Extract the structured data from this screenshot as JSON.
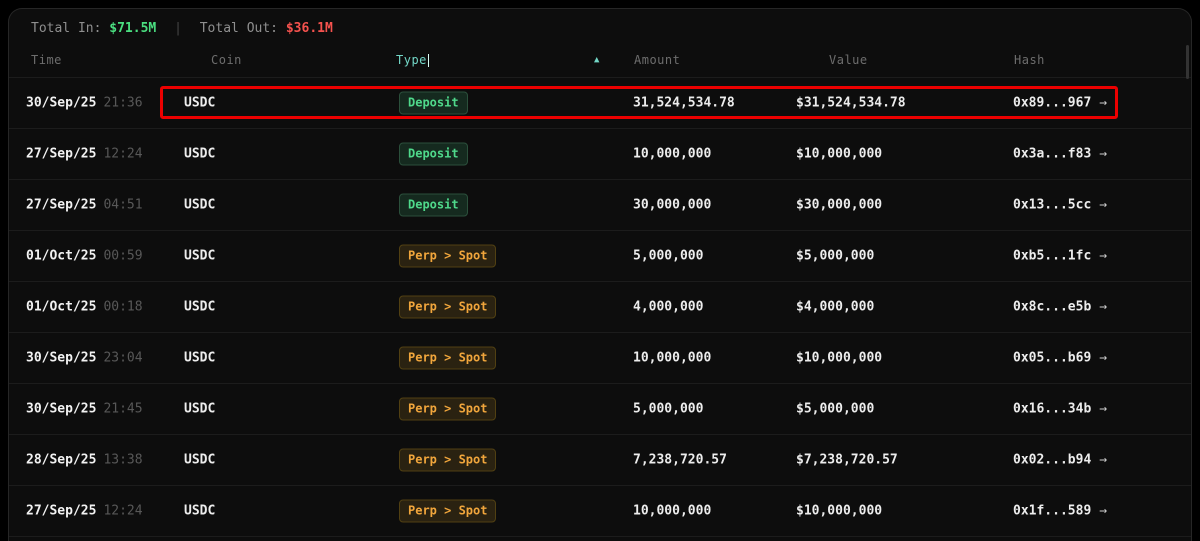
{
  "summary": {
    "total_in_label": "Total In:",
    "total_in_value": "$71.5M",
    "divider": "|",
    "total_out_label": "Total Out:",
    "total_out_value": "$36.1M"
  },
  "table": {
    "headers": {
      "time": "Time",
      "coin": "Coin",
      "type": "Type",
      "amount": "Amount",
      "value": "Value",
      "hash": "Hash"
    },
    "sort_icon": "▲",
    "rows": [
      {
        "date": "30/Sep/25",
        "time": "21:36",
        "coin": "USDC",
        "type": "Deposit",
        "type_kind": "deposit",
        "amount": "31,524,534.78",
        "value": "$31,524,534.78",
        "hash": "0x89...967",
        "arrow": "→",
        "highlighted": true
      },
      {
        "date": "27/Sep/25",
        "time": "12:24",
        "coin": "USDC",
        "type": "Deposit",
        "type_kind": "deposit",
        "amount": "10,000,000",
        "value": "$10,000,000",
        "hash": "0x3a...f83",
        "arrow": "→",
        "highlighted": false
      },
      {
        "date": "27/Sep/25",
        "time": "04:51",
        "coin": "USDC",
        "type": "Deposit",
        "type_kind": "deposit",
        "amount": "30,000,000",
        "value": "$30,000,000",
        "hash": "0x13...5cc",
        "arrow": "→",
        "highlighted": false
      },
      {
        "date": "01/Oct/25",
        "time": "00:59",
        "coin": "USDC",
        "type": "Perp > Spot",
        "type_kind": "perp-spot",
        "amount": "5,000,000",
        "value": "$5,000,000",
        "hash": "0xb5...1fc",
        "arrow": "→",
        "highlighted": false
      },
      {
        "date": "01/Oct/25",
        "time": "00:18",
        "coin": "USDC",
        "type": "Perp > Spot",
        "type_kind": "perp-spot",
        "amount": "4,000,000",
        "value": "$4,000,000",
        "hash": "0x8c...e5b",
        "arrow": "→",
        "highlighted": false
      },
      {
        "date": "30/Sep/25",
        "time": "23:04",
        "coin": "USDC",
        "type": "Perp > Spot",
        "type_kind": "perp-spot",
        "amount": "10,000,000",
        "value": "$10,000,000",
        "hash": "0x05...b69",
        "arrow": "→",
        "highlighted": false
      },
      {
        "date": "30/Sep/25",
        "time": "21:45",
        "coin": "USDC",
        "type": "Perp > Spot",
        "type_kind": "perp-spot",
        "amount": "5,000,000",
        "value": "$5,000,000",
        "hash": "0x16...34b",
        "arrow": "→",
        "highlighted": false
      },
      {
        "date": "28/Sep/25",
        "time": "13:38",
        "coin": "USDC",
        "type": "Perp > Spot",
        "type_kind": "perp-spot",
        "amount": "7,238,720.57",
        "value": "$7,238,720.57",
        "hash": "0x02...b94",
        "arrow": "→",
        "highlighted": false
      },
      {
        "date": "27/Sep/25",
        "time": "12:24",
        "coin": "USDC",
        "type": "Perp > Spot",
        "type_kind": "perp-spot",
        "amount": "10,000,000",
        "value": "$10,000,000",
        "hash": "0x1f...589",
        "arrow": "→",
        "highlighted": false
      }
    ]
  },
  "colors": {
    "total_in": "#4ade80",
    "total_out": "#f5524e",
    "active_column": "#72d6c6",
    "deposit_badge_text": "#4fd98b",
    "perp_spot_badge_text": "#f1a63c",
    "highlight_box": "#ec0000"
  }
}
